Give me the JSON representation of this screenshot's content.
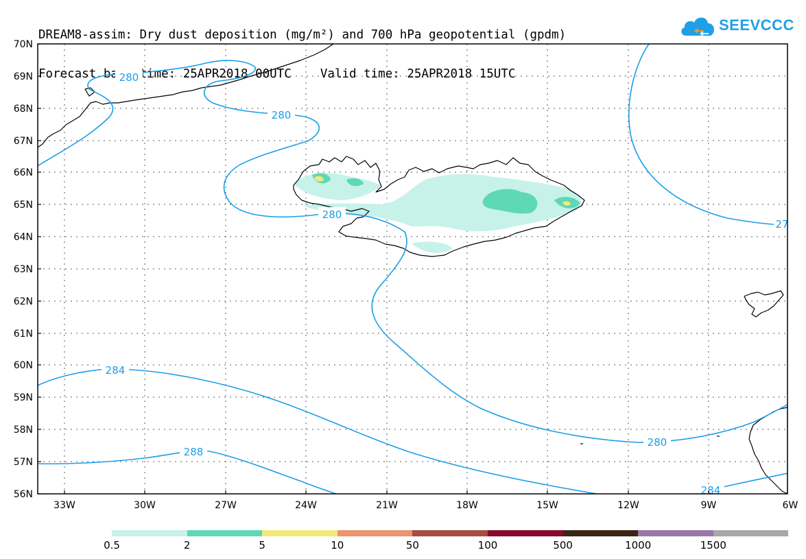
{
  "title": {
    "line1": "DREAM8-assim: Dry dust deposition (mg/m²) and 700 hPa geopotential (gpdm)",
    "line2": "Forecast base time: 25APR2018 00UTC    Valid time: 25APR2018 15UTC"
  },
  "logo": {
    "text": "SEEVCCC",
    "icon": "cloud-icon",
    "color": "#1fa0e6"
  },
  "map": {
    "lat_labels": [
      "70N",
      "69N",
      "68N",
      "67N",
      "66N",
      "65N",
      "64N",
      "63N",
      "62N",
      "61N",
      "60N",
      "59N",
      "58N",
      "57N",
      "56N"
    ],
    "lon_labels": [
      "33W",
      "30W",
      "27W",
      "24W",
      "21W",
      "18W",
      "15W",
      "12W",
      "9W",
      "6W"
    ],
    "contour_labels": [
      "280",
      "280",
      "280",
      "27",
      "280",
      "284",
      "288",
      "280",
      "284"
    ],
    "contour_color": "#1a9ee8"
  },
  "colorbar": {
    "colors": [
      "#c6f2ea",
      "#5ed8b6",
      "#f3e87c",
      "#ec9370",
      "#a64c42",
      "#870a2d",
      "#3a2414",
      "#9a78a8",
      "#a8a8a8"
    ],
    "labels": [
      "0.5",
      "2",
      "5",
      "10",
      "50",
      "100",
      "500",
      "1000",
      "1500"
    ]
  }
}
